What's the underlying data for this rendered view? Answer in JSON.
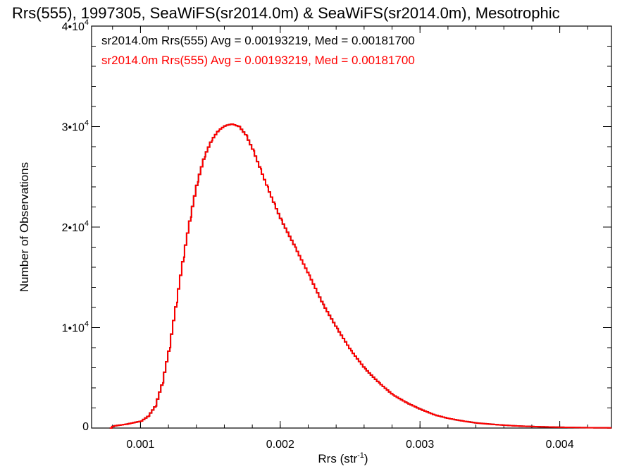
{
  "chart_data": {
    "type": "histogram",
    "title": "Rrs(555), 1997305, SeaWiFS(sr2014.0m) & SeaWiFS(sr2014.0m), Mesotrophic",
    "xlabel": {
      "base": "Rrs (str",
      "sup": "-1",
      "close": ")"
    },
    "ylabel": "Number of Observations",
    "xlim": [
      0.00065,
      0.00437
    ],
    "ylim": [
      0,
      40000
    ],
    "x_ticks": [
      {
        "value": 0.001,
        "label": "0.001"
      },
      {
        "value": 0.002,
        "label": "0.002"
      },
      {
        "value": 0.003,
        "label": "0.003"
      },
      {
        "value": 0.004,
        "label": "0.004"
      }
    ],
    "y_ticks": [
      {
        "value": 0,
        "base": "0",
        "sup": ""
      },
      {
        "value": 10000,
        "base": "1•10",
        "sup": "4"
      },
      {
        "value": 20000,
        "base": "2•10",
        "sup": "4"
      },
      {
        "value": 30000,
        "base": "3•10",
        "sup": "4"
      },
      {
        "value": 40000,
        "base": "4•10",
        "sup": "4"
      }
    ],
    "legend": [
      {
        "text": "sr2014.0m Rrs(555) Avg = 0.00193219, Med = 0.00181700",
        "color": "#000000"
      },
      {
        "text": "sr2014.0m Rrs(555) Avg = 0.00193219, Med = 0.00181700",
        "color": "#ff0000"
      }
    ],
    "series": [
      {
        "color": "#000000",
        "points": [
          [
            0.00078,
            0
          ],
          [
            0.0008,
            200
          ],
          [
            0.0009,
            400
          ],
          [
            0.001,
            700
          ],
          [
            0.00105,
            1200
          ],
          [
            0.0011,
            2200
          ],
          [
            0.00115,
            4500
          ],
          [
            0.0012,
            8000
          ],
          [
            0.00125,
            12500
          ],
          [
            0.0013,
            17000
          ],
          [
            0.00135,
            21000
          ],
          [
            0.0014,
            24500
          ],
          [
            0.00145,
            27000
          ],
          [
            0.0015,
            28600
          ],
          [
            0.00155,
            29600
          ],
          [
            0.0016,
            30100
          ],
          [
            0.00165,
            30250
          ],
          [
            0.0017,
            30000
          ],
          [
            0.00175,
            29100
          ],
          [
            0.0018,
            27600
          ],
          [
            0.00185,
            25800
          ],
          [
            0.0019,
            24000
          ],
          [
            0.00195,
            22300
          ],
          [
            0.002,
            20700
          ],
          [
            0.0021,
            18000
          ],
          [
            0.0022,
            15200
          ],
          [
            0.0023,
            12300
          ],
          [
            0.0024,
            9900
          ],
          [
            0.0025,
            7700
          ],
          [
            0.0026,
            5900
          ],
          [
            0.0027,
            4500
          ],
          [
            0.0028,
            3300
          ],
          [
            0.0029,
            2500
          ],
          [
            0.003,
            1850
          ],
          [
            0.0031,
            1300
          ],
          [
            0.0032,
            950
          ],
          [
            0.0033,
            700
          ],
          [
            0.0034,
            500
          ],
          [
            0.0035,
            380
          ],
          [
            0.0036,
            280
          ],
          [
            0.0037,
            200
          ],
          [
            0.0038,
            150
          ],
          [
            0.0039,
            110
          ],
          [
            0.004,
            80
          ],
          [
            0.0041,
            55
          ],
          [
            0.0042,
            35
          ],
          [
            0.0043,
            25
          ],
          [
            0.00437,
            20
          ]
        ]
      },
      {
        "color": "#ff0000",
        "points": [
          [
            0.00078,
            0
          ],
          [
            0.0008,
            200
          ],
          [
            0.0009,
            400
          ],
          [
            0.001,
            700
          ],
          [
            0.00105,
            1200
          ],
          [
            0.0011,
            2200
          ],
          [
            0.00115,
            4500
          ],
          [
            0.0012,
            8000
          ],
          [
            0.00125,
            12500
          ],
          [
            0.0013,
            17000
          ],
          [
            0.00135,
            21000
          ],
          [
            0.0014,
            24500
          ],
          [
            0.00145,
            27000
          ],
          [
            0.0015,
            28600
          ],
          [
            0.00155,
            29600
          ],
          [
            0.0016,
            30100
          ],
          [
            0.00165,
            30250
          ],
          [
            0.0017,
            30000
          ],
          [
            0.00175,
            29100
          ],
          [
            0.0018,
            27600
          ],
          [
            0.00185,
            25800
          ],
          [
            0.0019,
            24000
          ],
          [
            0.00195,
            22300
          ],
          [
            0.002,
            20700
          ],
          [
            0.0021,
            18000
          ],
          [
            0.0022,
            15200
          ],
          [
            0.0023,
            12300
          ],
          [
            0.0024,
            9900
          ],
          [
            0.0025,
            7700
          ],
          [
            0.0026,
            5900
          ],
          [
            0.0027,
            4500
          ],
          [
            0.0028,
            3300
          ],
          [
            0.0029,
            2500
          ],
          [
            0.003,
            1850
          ],
          [
            0.0031,
            1300
          ],
          [
            0.0032,
            950
          ],
          [
            0.0033,
            700
          ],
          [
            0.0034,
            500
          ],
          [
            0.0035,
            380
          ],
          [
            0.0036,
            280
          ],
          [
            0.0037,
            200
          ],
          [
            0.0038,
            150
          ],
          [
            0.0039,
            110
          ],
          [
            0.004,
            80
          ],
          [
            0.0041,
            55
          ],
          [
            0.0042,
            35
          ],
          [
            0.0043,
            25
          ],
          [
            0.00437,
            20
          ]
        ]
      }
    ],
    "grid": false,
    "legend_placement": "top-left"
  }
}
